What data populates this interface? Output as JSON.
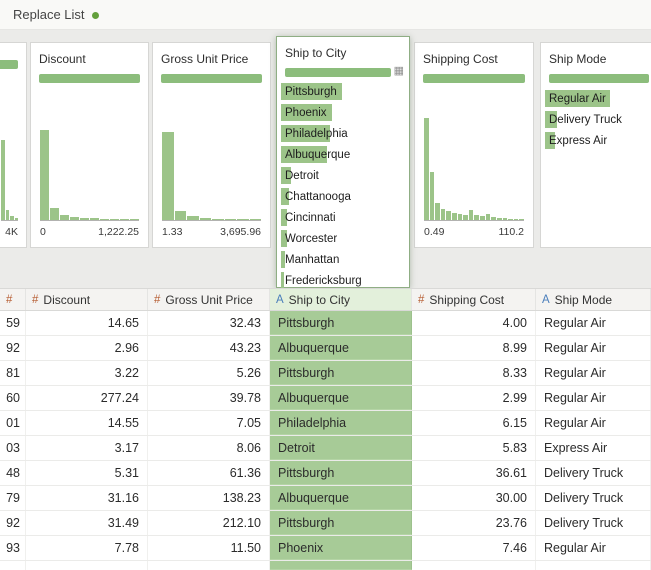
{
  "topbar": {
    "title": "Replace List"
  },
  "icons": {
    "detail_grid": "▦"
  },
  "colors": {
    "summary_bar_green": "#8cbd7c",
    "histogram_green": "#9cc489",
    "selected_cell_green": "#a7cb97",
    "selected_header_bg": "#e3f0db",
    "numeric_icon": "#b65c31",
    "string_icon": "#4a7ebb",
    "status_dot": "#63a03c"
  },
  "profiles": [
    {
      "id": "cut",
      "title": "",
      "axis_min": "",
      "axis_max": "4K",
      "hist": [
        75,
        9,
        4,
        2,
        0
      ]
    },
    {
      "id": "discount",
      "title": "Discount",
      "axis_min": "0",
      "axis_max": "1,222.25",
      "hist": [
        84,
        11,
        5,
        3,
        2,
        2,
        1,
        1,
        1,
        0,
        0,
        0,
        0,
        0,
        0,
        0,
        0,
        0,
        0,
        1
      ]
    },
    {
      "id": "gross-unit-price",
      "title": "Gross Unit Price",
      "axis_min": "1.33",
      "axis_max": "3,695.96",
      "hist": [
        82,
        8,
        4,
        2,
        1,
        1,
        1,
        0,
        0,
        0,
        0,
        0,
        0,
        0,
        0,
        0,
        0,
        0,
        0,
        1
      ]
    },
    {
      "id": "ship-to-city",
      "title": "Ship to City",
      "selected": true,
      "values": [
        {
          "label": "Pittsburgh",
          "pct": 48
        },
        {
          "label": "Phoenix",
          "pct": 40
        },
        {
          "label": "Philadelphia",
          "pct": 38
        },
        {
          "label": "Albuquerque",
          "pct": 36
        },
        {
          "label": "Detroit",
          "pct": 8
        },
        {
          "label": "Chattanooga",
          "pct": 6
        },
        {
          "label": "Cincinnati",
          "pct": 5
        },
        {
          "label": "Worcester",
          "pct": 5
        },
        {
          "label": "Manhattan",
          "pct": 3
        },
        {
          "label": "Fredericksburg",
          "pct": 2
        }
      ]
    },
    {
      "id": "shipping-cost",
      "title": "Shipping Cost",
      "axis_min": "0.49",
      "axis_max": "110.2",
      "hist": [
        95,
        45,
        16,
        10,
        8,
        7,
        6,
        5,
        9,
        5,
        4,
        6,
        3,
        2,
        2,
        1,
        1,
        0,
        0,
        1
      ]
    },
    {
      "id": "ship-mode",
      "title": "Ship Mode",
      "values": [
        {
          "label": "Regular Air",
          "pct": 58
        },
        {
          "label": "Delivery Truck",
          "pct": 11
        },
        {
          "label": "Express Air",
          "pct": 9
        }
      ]
    }
  ],
  "grid": {
    "columns": [
      {
        "icon": "#",
        "label": ""
      },
      {
        "icon": "#",
        "label": "Discount"
      },
      {
        "icon": "#",
        "label": "Gross Unit Price"
      },
      {
        "icon": "A",
        "label": "Ship to City",
        "selected": true
      },
      {
        "icon": "#",
        "label": "Shipping Cost"
      },
      {
        "icon": "A",
        "label": "Ship Mode"
      }
    ],
    "rows": [
      [
        "59",
        "14.65",
        "32.43",
        "Pittsburgh",
        "4.00",
        "Regular Air"
      ],
      [
        "92",
        "2.96",
        "43.23",
        "Albuquerque",
        "8.99",
        "Regular Air"
      ],
      [
        "81",
        "3.22",
        "5.26",
        "Pittsburgh",
        "8.33",
        "Regular Air"
      ],
      [
        "60",
        "277.24",
        "39.78",
        "Albuquerque",
        "2.99",
        "Regular Air"
      ],
      [
        "01",
        "14.55",
        "7.05",
        "Philadelphia",
        "6.15",
        "Regular Air"
      ],
      [
        "03",
        "3.17",
        "8.06",
        "Detroit",
        "5.83",
        "Express Air"
      ],
      [
        "48",
        "5.31",
        "61.36",
        "Pittsburgh",
        "36.61",
        "Delivery Truck"
      ],
      [
        "79",
        "31.16",
        "138.23",
        "Albuquerque",
        "30.00",
        "Delivery Truck"
      ],
      [
        "92",
        "31.49",
        "212.10",
        "Pittsburgh",
        "23.76",
        "Delivery Truck"
      ],
      [
        "93",
        "7.78",
        "11.50",
        "Phoenix",
        "7.46",
        "Regular Air"
      ]
    ],
    "partial_row": [
      "",
      "",
      "",
      "",
      "",
      ""
    ]
  }
}
